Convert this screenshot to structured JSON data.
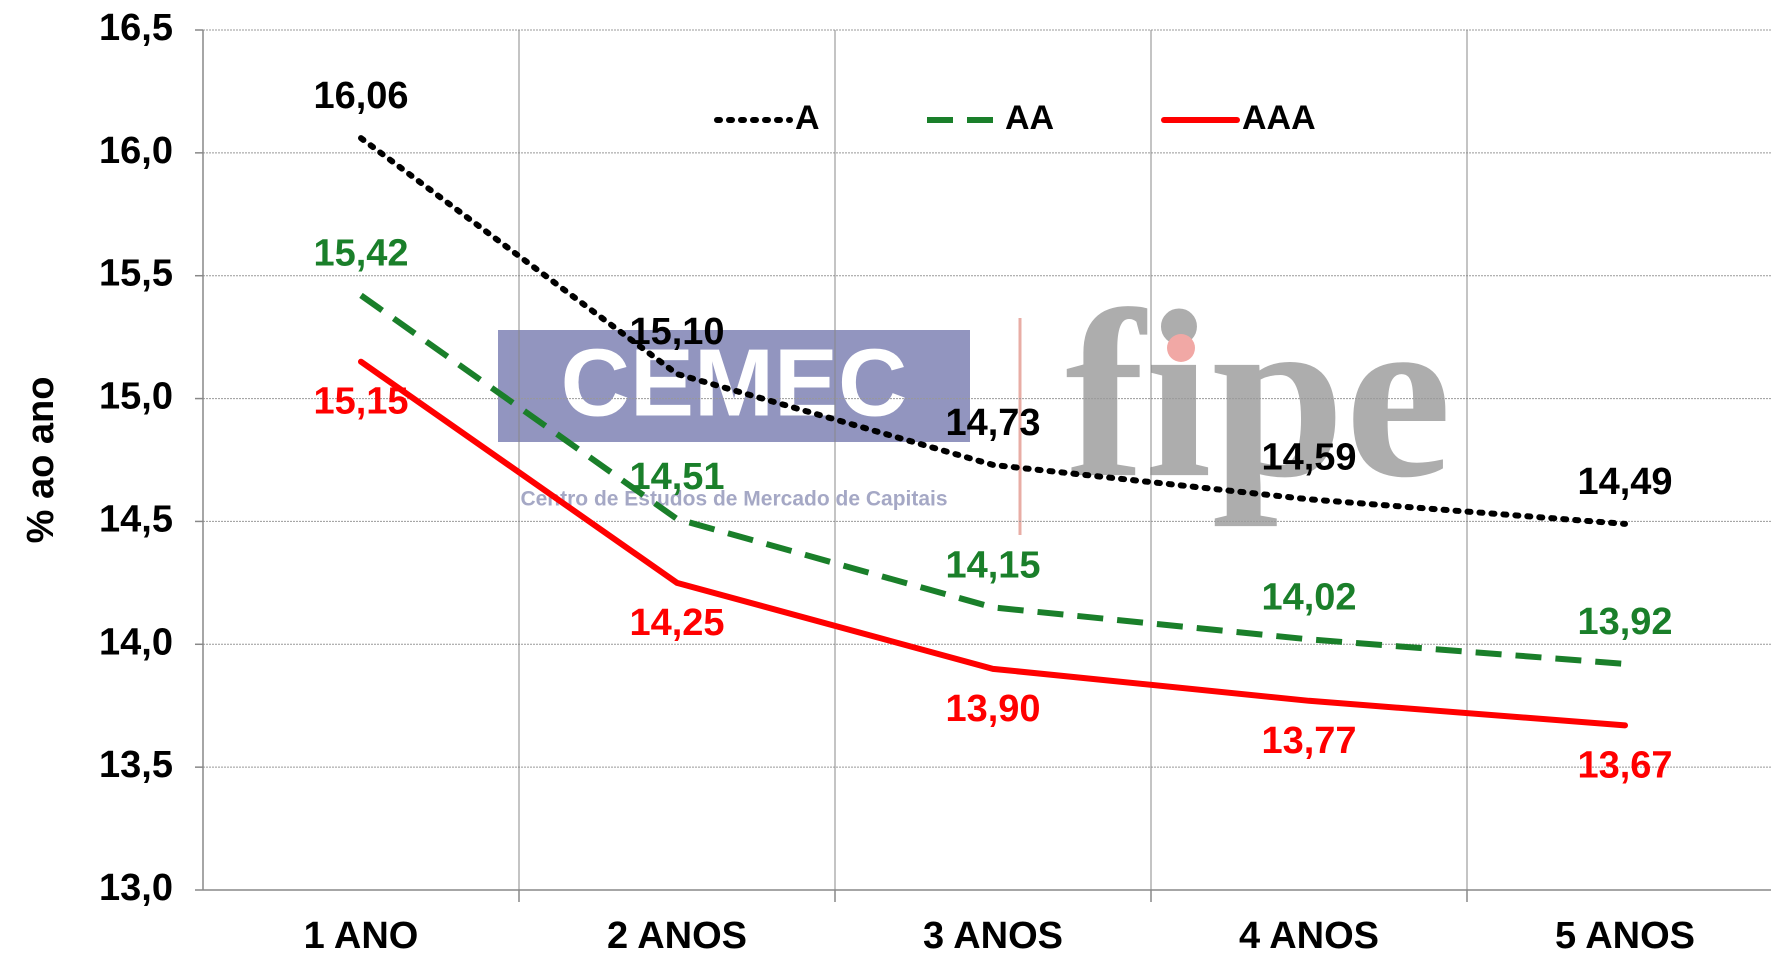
{
  "chart_data": {
    "type": "line",
    "y_label": "% ao ano",
    "categories": [
      "1 ANO",
      "2 ANOS",
      "3 ANOS",
      "4 ANOS",
      "5 ANOS"
    ],
    "series": [
      {
        "name": "A",
        "color": "#000000",
        "dash": "dotted",
        "values": [
          16.06,
          15.1,
          14.73,
          14.59,
          14.49
        ],
        "value_labels": [
          "16,06",
          "15,10",
          "14,73",
          "14,59",
          "14,49"
        ],
        "label_side": "above"
      },
      {
        "name": "AA",
        "color": "#1a7f2a",
        "dash": "dashed",
        "values": [
          15.42,
          14.51,
          14.15,
          14.02,
          13.92
        ],
        "value_labels": [
          "15,42",
          "14,51",
          "14,15",
          "14,02",
          "13,92"
        ],
        "label_side": "above"
      },
      {
        "name": "AAA",
        "color": "#ff0000",
        "dash": "solid",
        "values": [
          15.15,
          14.25,
          13.9,
          13.77,
          13.67
        ],
        "value_labels": [
          "15,15",
          "14,25",
          "13,90",
          "13,77",
          "13,67"
        ],
        "label_side": "below"
      }
    ],
    "ylim": [
      13.0,
      16.5
    ],
    "yticks": [
      {
        "value": 13.0,
        "label": "13,0"
      },
      {
        "value": 13.5,
        "label": "13,5"
      },
      {
        "value": 14.0,
        "label": "14,0"
      },
      {
        "value": 14.5,
        "label": "14,5"
      },
      {
        "value": 15.0,
        "label": "15,0"
      },
      {
        "value": 15.5,
        "label": "15,5"
      },
      {
        "value": 16.0,
        "label": "16,0"
      },
      {
        "value": 16.5,
        "label": "16,5"
      }
    ],
    "grid": true,
    "legend": "top",
    "watermark": {
      "logo": "CEMEC",
      "logo_caption": "Centro de Estudos de Mercado de Capitais",
      "brand": "fipe"
    }
  }
}
